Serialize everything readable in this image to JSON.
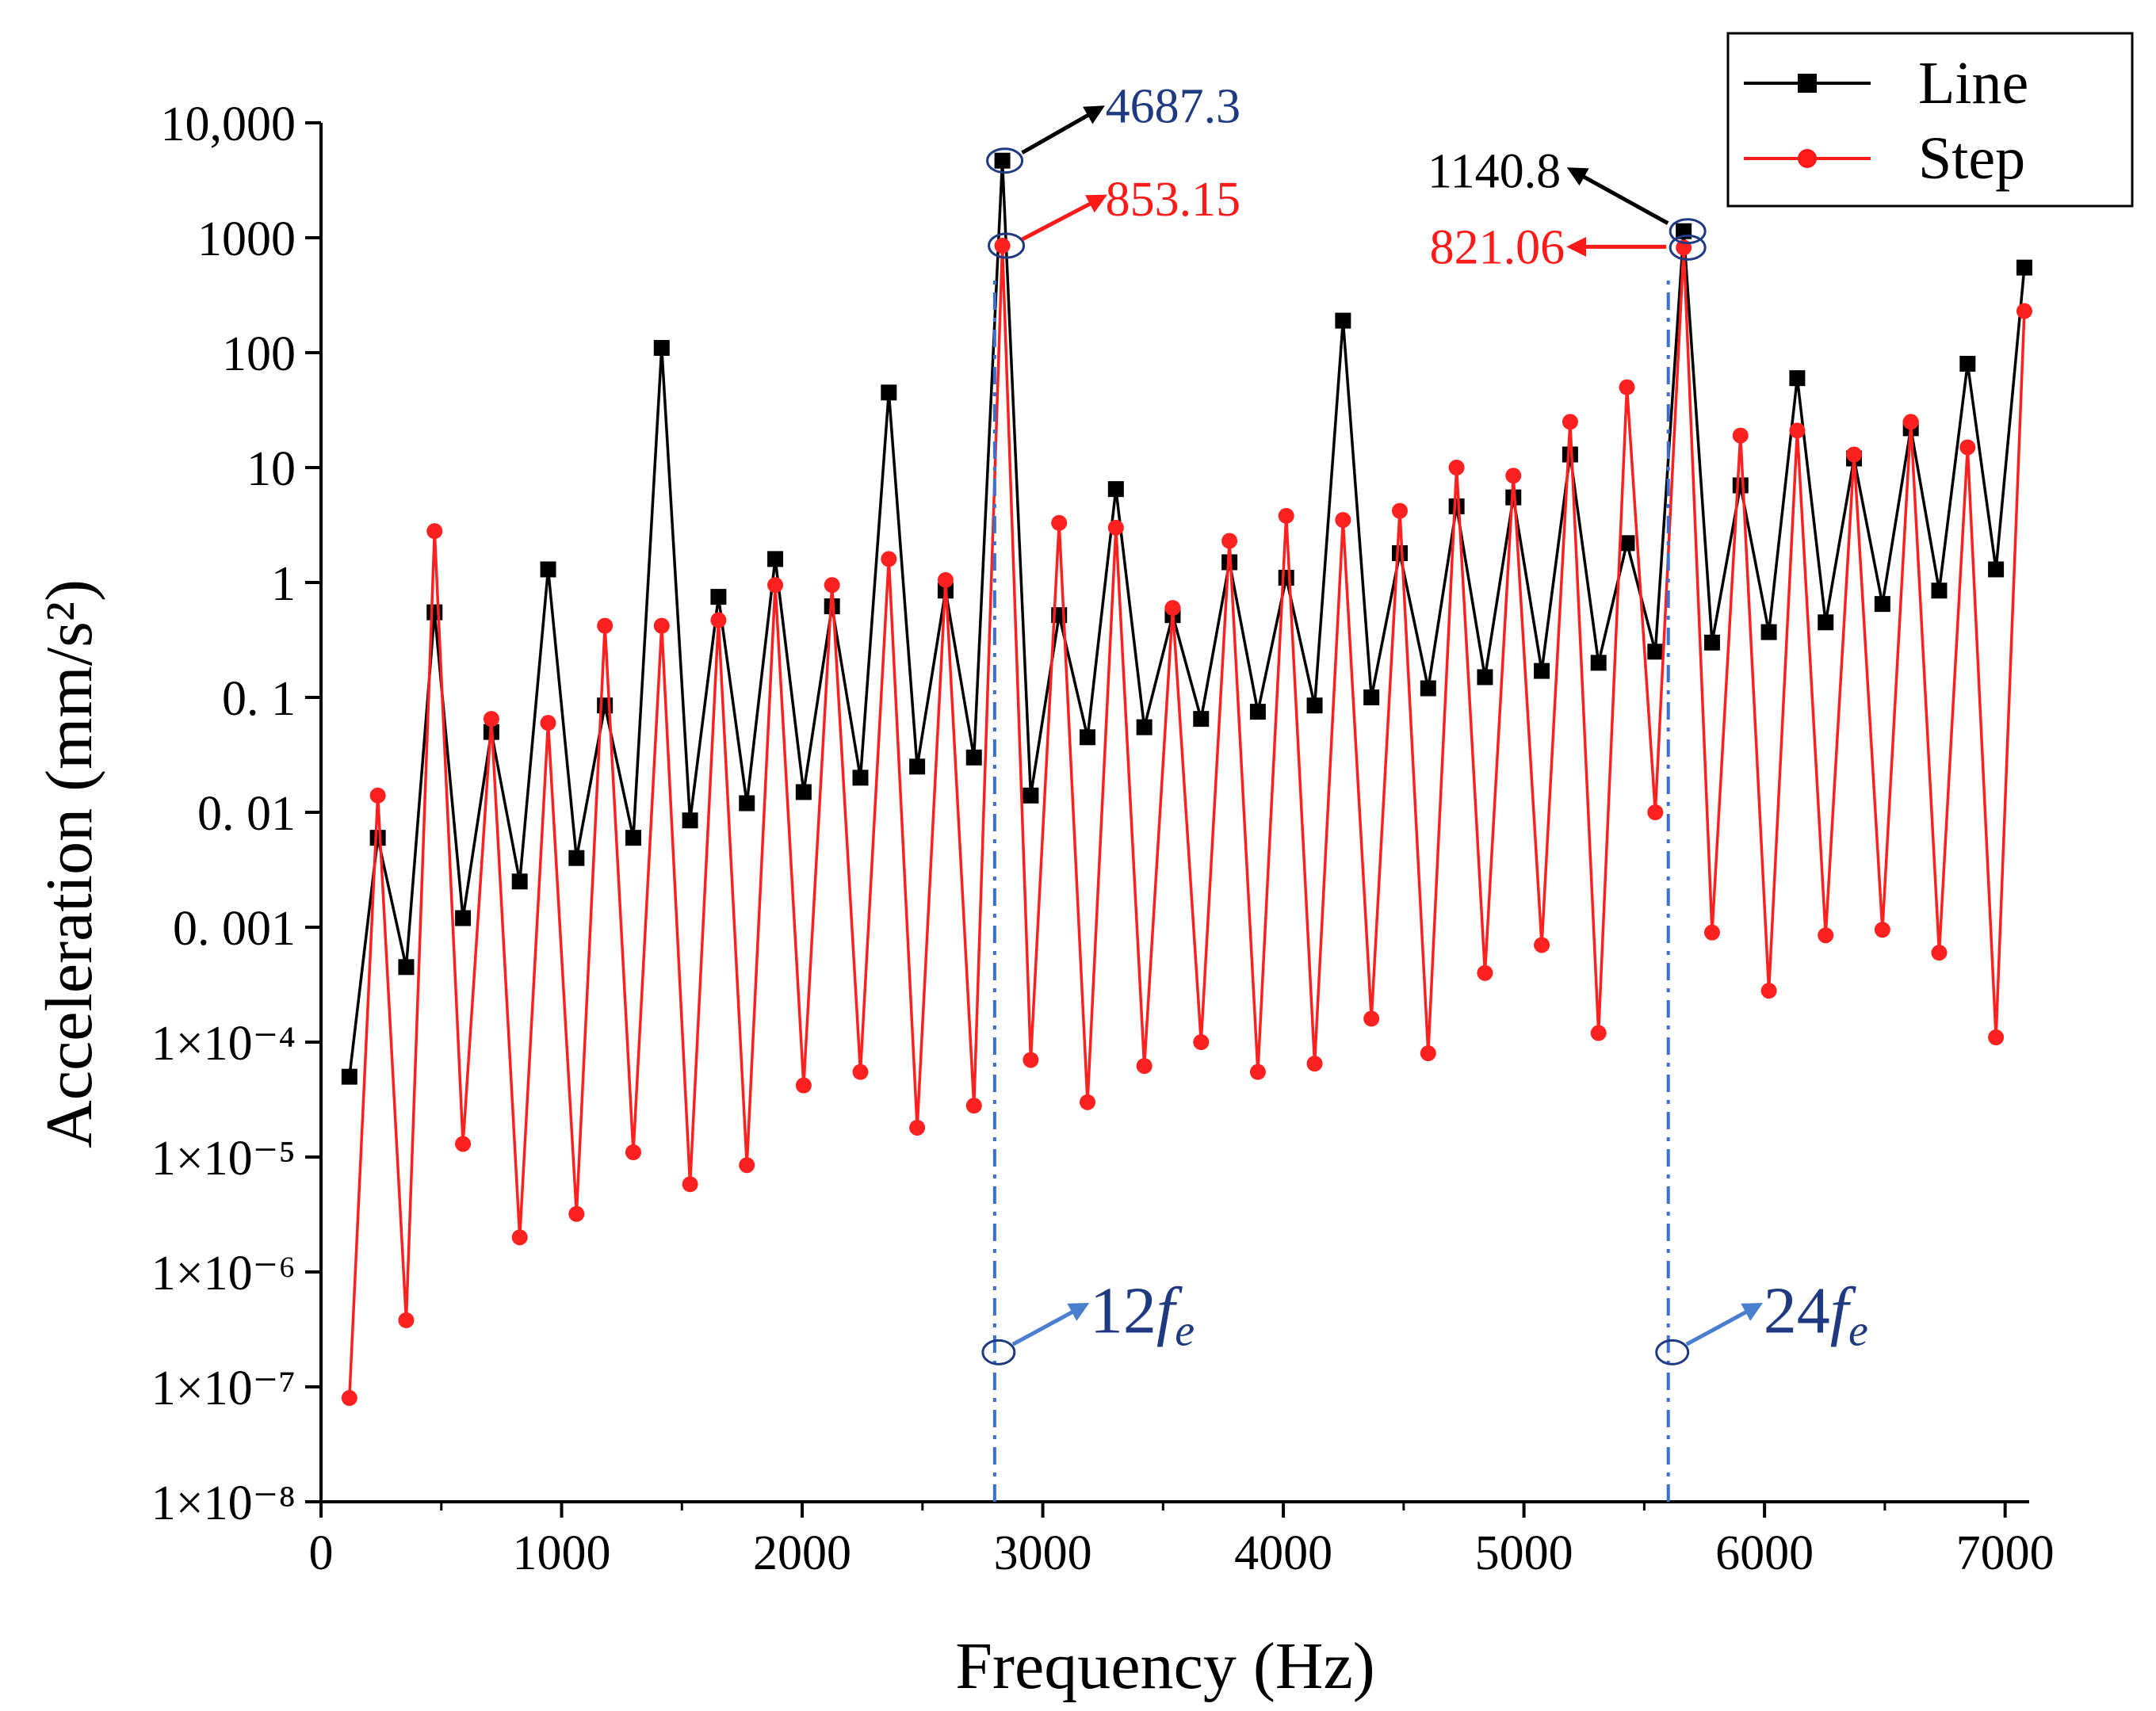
{
  "chart_data": {
    "type": "line",
    "scale_y": "log",
    "xlabel": "Frequency (Hz)",
    "ylabel": "Acceleration (mm/s²)",
    "xlim": [
      0,
      7100
    ],
    "ylim": [
      1e-08,
      10000
    ],
    "x_ticks": [
      0,
      1000,
      2000,
      3000,
      4000,
      5000,
      6000,
      7000
    ],
    "x_tick_labels": [
      "0",
      "1000",
      "2000",
      "3000",
      "4000",
      "5000",
      "6000",
      "7000"
    ],
    "y_ticks": [
      1e-08,
      1e-07,
      1e-06,
      1e-05,
      0.0001,
      0.001,
      0.01,
      0.1,
      1,
      10,
      100,
      1000,
      10000
    ],
    "y_tick_labels": [
      "1×10⁻⁸",
      "1×10⁻⁷",
      "1×10⁻⁶",
      "1×10⁻⁵",
      "1×10⁻⁴",
      "0. 001",
      "0. 01",
      "0. 1",
      "1",
      "10",
      "100",
      "1000",
      "10,000"
    ],
    "legend": {
      "position": "top-right",
      "entries": [
        "Line",
        "Step"
      ]
    },
    "series": [
      {
        "name": "Line",
        "color": "#000000",
        "marker": "square",
        "x": [
          118,
          236,
          354,
          472,
          590,
          708,
          826,
          944,
          1062,
          1180,
          1298,
          1416,
          1534,
          1652,
          1770,
          1888,
          2006,
          2124,
          2242,
          2360,
          2478,
          2596,
          2714,
          2832,
          2950,
          3068,
          3186,
          3304,
          3422,
          3540,
          3658,
          3776,
          3894,
          4012,
          4130,
          4248,
          4366,
          4484,
          4602,
          4720,
          4838,
          4956,
          5074,
          5192,
          5310,
          5428,
          5546,
          5664,
          5782,
          5900,
          6018,
          6136,
          6254,
          6372,
          6490,
          6608,
          6726,
          6844,
          6962,
          7080
        ],
        "y": [
          5e-05,
          0.006,
          0.00045,
          0.55,
          0.0012,
          0.05,
          0.0025,
          1.3,
          0.004,
          0.085,
          0.006,
          110,
          0.0085,
          0.75,
          0.012,
          1.6,
          0.015,
          0.62,
          0.02,
          45,
          0.025,
          0.85,
          0.03,
          4687.3,
          0.014,
          0.52,
          0.045,
          6.5,
          0.055,
          0.52,
          0.065,
          1.5,
          0.075,
          1.1,
          0.085,
          190,
          0.1,
          1.8,
          0.12,
          4.6,
          0.15,
          5.5,
          0.17,
          13,
          0.2,
          2.2,
          0.25,
          1140.8,
          0.3,
          7,
          0.37,
          60,
          0.45,
          12,
          0.65,
          22,
          0.85,
          80,
          1.3,
          550
        ]
      },
      {
        "name": "Step",
        "color": "#ff2020",
        "marker": "circle",
        "x": [
          118,
          236,
          354,
          472,
          590,
          708,
          826,
          944,
          1062,
          1180,
          1298,
          1416,
          1534,
          1652,
          1770,
          1888,
          2006,
          2124,
          2242,
          2360,
          2478,
          2596,
          2714,
          2832,
          2950,
          3068,
          3186,
          3304,
          3422,
          3540,
          3658,
          3776,
          3894,
          4012,
          4130,
          4248,
          4366,
          4484,
          4602,
          4720,
          4838,
          4956,
          5074,
          5192,
          5310,
          5428,
          5546,
          5664,
          5782,
          5900,
          6018,
          6136,
          6254,
          6372,
          6490,
          6608,
          6726,
          6844,
          6962,
          7080
        ],
        "y": [
          8e-08,
          0.014,
          3.8e-07,
          2.8,
          1.3e-05,
          0.065,
          2e-06,
          0.06,
          3.2e-06,
          0.42,
          1.1e-05,
          0.42,
          5.8e-06,
          0.47,
          8.5e-06,
          0.95,
          4.2e-05,
          0.95,
          5.5e-05,
          1.6,
          1.8e-05,
          1.05,
          2.8e-05,
          853.15,
          7e-05,
          3.3,
          3e-05,
          3,
          6.2e-05,
          0.6,
          0.0001,
          2.3,
          5.5e-05,
          3.8,
          6.5e-05,
          3.5,
          0.00016,
          4.2,
          8e-05,
          10,
          0.0004,
          8.5,
          0.0007,
          25,
          0.00012,
          50,
          0.01,
          821.06,
          0.0009,
          19,
          0.00028,
          21,
          0.00085,
          13,
          0.00095,
          25,
          0.0006,
          15,
          0.00011,
          230
        ]
      }
    ],
    "annotations": {
      "peak1_line": "4687.3",
      "peak1_step": "853.15",
      "peak2_line": "1140.8",
      "peak2_step": "821.06",
      "harmonic1": {
        "label": "12",
        "sub": "f",
        "subsub": "e",
        "x": 2800
      },
      "harmonic2": {
        "label": "24",
        "sub": "f",
        "subsub": "e",
        "x": 5600
      }
    }
  }
}
